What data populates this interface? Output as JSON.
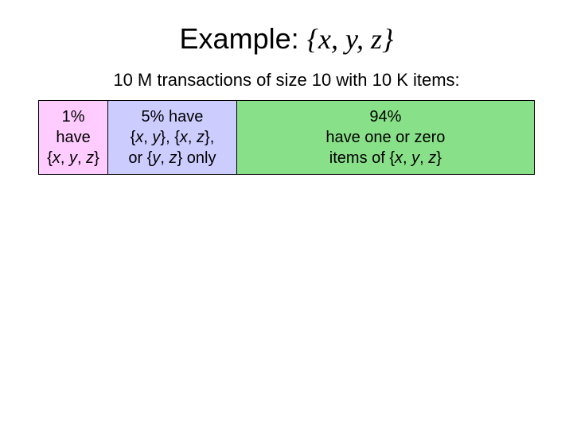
{
  "title": {
    "prefix": "Example: ",
    "set_html": "{<i>x</i>, <i>y</i>, <i>z</i>}"
  },
  "subtitle": "10 M transactions of size 10 with 10 K items:",
  "segments": [
    {
      "width_pct": 14,
      "bg": "#ffccff",
      "lines_html": [
        "1%",
        "have",
        "{<i>x</i>, <i>y</i>, <i>z</i>}"
      ]
    },
    {
      "width_pct": 26,
      "bg": "#ccccff",
      "lines_html": [
        "5% have",
        "{<i>x</i>, <i>y</i>}, {<i>x</i>, <i>z</i>},",
        "or {<i>y</i>, <i>z</i>} only"
      ]
    },
    {
      "width_pct": 60,
      "bg": "#88e188",
      "lines_html": [
        "94%",
        "have one or zero",
        "items of {<i>x</i>, <i>y</i>, <i>z</i>}"
      ]
    }
  ]
}
